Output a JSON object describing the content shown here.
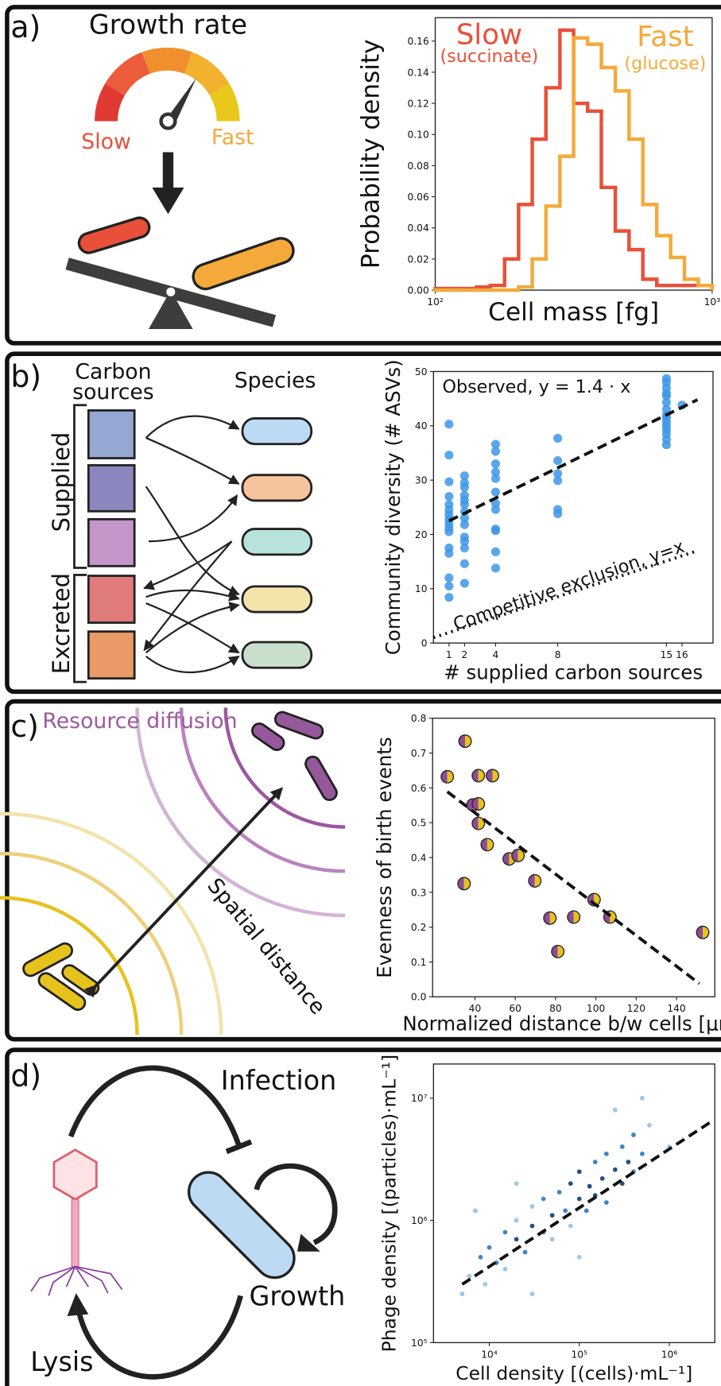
{
  "panel_labels": [
    "a)",
    "b)",
    "c)",
    "d)"
  ],
  "diagrams": {
    "a": {
      "title": "Growth rate",
      "slow": "Slow",
      "fast": "Fast"
    },
    "b": {
      "carbon_sources": [
        "Carbon",
        "sources"
      ],
      "species": "Species",
      "supplied": "Supplied",
      "excreted": "Excreted"
    },
    "c": {
      "resource": "Resource diffusion",
      "distance": "Spatial distance"
    },
    "d": {
      "infection": "Infection",
      "growth": "Growth",
      "lysis": "Lysis"
    }
  },
  "chart_data": [
    {
      "type": "histogram",
      "ylabel": "Probability density",
      "xlabel": "Cell mass [fg]",
      "xscale": "log",
      "xlim": [
        100,
        1000
      ],
      "xticks": [
        {
          "value": 100,
          "label": "10²"
        },
        {
          "value": 1000,
          "label": "10³"
        }
      ],
      "ylim": [
        0,
        0.175
      ],
      "yticks": [
        {
          "value": 0,
          "label": "0.00"
        },
        {
          "value": 0.02,
          "label": "0.02"
        },
        {
          "value": 0.04,
          "label": "0.04"
        },
        {
          "value": 0.06,
          "label": "0.06"
        },
        {
          "value": 0.08,
          "label": "0.08"
        },
        {
          "value": 0.1,
          "label": "0.10"
        },
        {
          "value": 0.12,
          "label": "0.12"
        },
        {
          "value": 0.14,
          "label": "0.14"
        },
        {
          "value": 0.16,
          "label": "0.16"
        }
      ],
      "bins": [
        100,
        112,
        126,
        141,
        158,
        178,
        200,
        224,
        251,
        282,
        316,
        355,
        398,
        447,
        501,
        562,
        631,
        708,
        794,
        891,
        1000
      ],
      "series": [
        {
          "name": "Slow",
          "note": "(succinate)",
          "color": "#e8503a",
          "values": [
            0.001,
            0.001,
            0.001,
            0.002,
            0.003,
            0.02,
            0.055,
            0.097,
            0.13,
            0.167,
            0.12,
            0.115,
            0.066,
            0.038,
            0.026,
            0.007,
            0.003,
            0.003,
            0.003,
            0.003
          ]
        },
        {
          "name": "Fast",
          "note": "(glucose)",
          "color": "#f4aa3a",
          "values": [
            0,
            0,
            0,
            0,
            0,
            0,
            0.002,
            0.02,
            0.054,
            0.086,
            0.162,
            0.158,
            0.143,
            0.128,
            0.097,
            0.055,
            0.035,
            0.021,
            0.007,
            0.003
          ]
        }
      ]
    },
    {
      "type": "scatter",
      "marker": "circle",
      "xlabel": "# supplied carbon sources",
      "ylabel": "Community diversity (# ASVs)",
      "xlim": [
        0,
        18
      ],
      "ylim": [
        0,
        50
      ],
      "xticks": [
        1,
        2,
        4,
        8,
        15,
        16
      ],
      "yticks": [
        0,
        10,
        20,
        30,
        40,
        50
      ],
      "series": [
        {
          "color": "#3d97e8",
          "x": [
            1,
            1,
            1,
            1,
            1,
            1,
            1,
            1,
            1,
            1,
            1,
            1,
            1,
            1,
            1,
            1,
            2,
            2,
            2,
            2,
            2,
            2,
            2,
            2,
            2,
            2,
            2,
            2,
            2,
            2,
            4,
            4,
            4,
            4,
            4,
            4,
            4,
            4,
            4,
            4,
            4,
            4,
            8,
            8,
            8,
            8,
            8,
            8,
            15,
            15,
            15,
            15,
            15,
            15,
            15,
            15,
            15,
            15,
            15,
            15,
            15,
            15,
            15,
            16
          ],
          "values": [
            40.3,
            34.6,
            29.7,
            27,
            25.5,
            24.5,
            23.6,
            22.8,
            22,
            21.2,
            20.5,
            17.5,
            16.5,
            12,
            10.5,
            8.4,
            30.8,
            29.5,
            28.7,
            27.2,
            26.3,
            25.5,
            24.2,
            23,
            21.8,
            19.5,
            18.7,
            17.5,
            14.6,
            11,
            36.6,
            35.3,
            33,
            31.5,
            30.3,
            27.8,
            25.7,
            24.6,
            21,
            20.7,
            16.8,
            13.8,
            37.7,
            33.6,
            31.2,
            29.9,
            24.6,
            23.8,
            48.7,
            48,
            47,
            46,
            45.5,
            44.3,
            43,
            42,
            41.5,
            40.7,
            40,
            39.3,
            38.5,
            37.5,
            36.5,
            43.8
          ]
        }
      ],
      "lines": [
        {
          "label": "Observed, y = 1.4 · x",
          "x": [
            1,
            17
          ],
          "y": [
            22.5,
            44.8
          ],
          "style": "dashed"
        },
        {
          "label": "Competitive exclusion, y=x",
          "x": [
            0,
            17
          ],
          "y": [
            1,
            17
          ],
          "style": "dotted"
        }
      ]
    },
    {
      "type": "scatter",
      "marker": "half",
      "xlabel": "Normalized distance b/w cells [μm]",
      "ylabel": "Evenness of birth events",
      "xlim": [
        19,
        159
      ],
      "ylim": [
        0,
        0.8
      ],
      "xticks": [
        40,
        60,
        80,
        100,
        120,
        140
      ],
      "yticks": [
        {
          "value": 0,
          "label": "0.0"
        },
        {
          "value": 0.1,
          "label": "0.1"
        },
        {
          "value": 0.2,
          "label": "0.2"
        },
        {
          "value": 0.3,
          "label": "0.3"
        },
        {
          "value": 0.4,
          "label": "0.4"
        },
        {
          "value": 0.5,
          "label": "0.5"
        },
        {
          "value": 0.6,
          "label": "0.6"
        },
        {
          "value": 0.7,
          "label": "0.7"
        },
        {
          "value": 0.8,
          "label": "0.8"
        }
      ],
      "series": [
        {
          "colors": [
            "#8e4d95",
            "#e8c21d"
          ],
          "x": [
            26.3,
            35.1,
            41.7,
            48.7,
            39,
            41.7,
            41.7,
            46.1,
            34.6,
            57,
            61.4,
            69.7,
            77.2,
            89,
            81.1,
            99.1,
            107,
            153
          ],
          "values": [
            0.632,
            0.734,
            0.635,
            0.635,
            0.551,
            0.554,
            0.498,
            0.437,
            0.325,
            0.396,
            0.406,
            0.333,
            0.226,
            0.229,
            0.13,
            0.279,
            0.229,
            0.185
          ]
        }
      ],
      "lines": [
        {
          "x": [
            26.3,
            151.3
          ],
          "y": [
            0.589,
            0.038
          ],
          "style": "dashed"
        }
      ]
    },
    {
      "type": "scatter",
      "marker": "dot",
      "xlabel": "Cell density [(cells)·mL⁻¹]",
      "ylabel": "Phage density [(particles)·mL⁻¹]",
      "xscale": "log",
      "yscale": "log",
      "xlim": [
        2400,
        3200000
      ],
      "ylim": [
        100000,
        19000000
      ],
      "xticks": [
        {
          "value": 10000,
          "label": "10⁴"
        },
        {
          "value": 100000,
          "label": "10⁵"
        },
        {
          "value": 1000000,
          "label": "10⁶"
        }
      ],
      "yticks": [
        {
          "value": 100000,
          "label": "10⁵"
        },
        {
          "value": 1000000,
          "label": "10⁶"
        },
        {
          "value": 10000000,
          "label": "10⁷"
        }
      ],
      "series": [
        {
          "color": "#8fc1e6",
          "x": [
            6000,
            9000,
            15000,
            5000,
            7000,
            30000,
            100000,
            250000,
            600000,
            500000,
            20000,
            1000000,
            80000,
            50000,
            20000,
            30000
          ],
          "values": [
            350000,
            300000,
            400000,
            250000,
            1200000,
            250000,
            500000,
            8000000,
            6000000,
            10000000,
            2000000,
            4000000,
            900000,
            700000,
            1000000,
            1300000
          ]
        },
        {
          "color": "#2b78c0",
          "x": [
            8000,
            10000,
            15000,
            40000,
            40000,
            60000,
            70000,
            120000,
            150000,
            200000,
            200000,
            300000,
            400000,
            400000,
            500000,
            12000,
            25000
          ],
          "values": [
            500000,
            600000,
            800000,
            800000,
            1500000,
            1700000,
            1200000,
            1200000,
            3000000,
            1400000,
            3500000,
            4000000,
            2500000,
            5000000,
            3500000,
            450000,
            550000
          ]
        },
        {
          "color": "#0b3d7a",
          "x": [
            30000,
            50000,
            80000,
            100000,
            130000,
            150000,
            180000,
            250000,
            300000,
            350000,
            20000,
            100000
          ],
          "values": [
            900000,
            1100000,
            2000000,
            1500000,
            1900000,
            1600000,
            2200000,
            2600000,
            2000000,
            3000000,
            700000,
            2500000
          ]
        }
      ],
      "lines": [
        {
          "x": [
            5000,
            3000000
          ],
          "y": [
            300000,
            6500000
          ],
          "style": "dashed"
        }
      ]
    }
  ]
}
